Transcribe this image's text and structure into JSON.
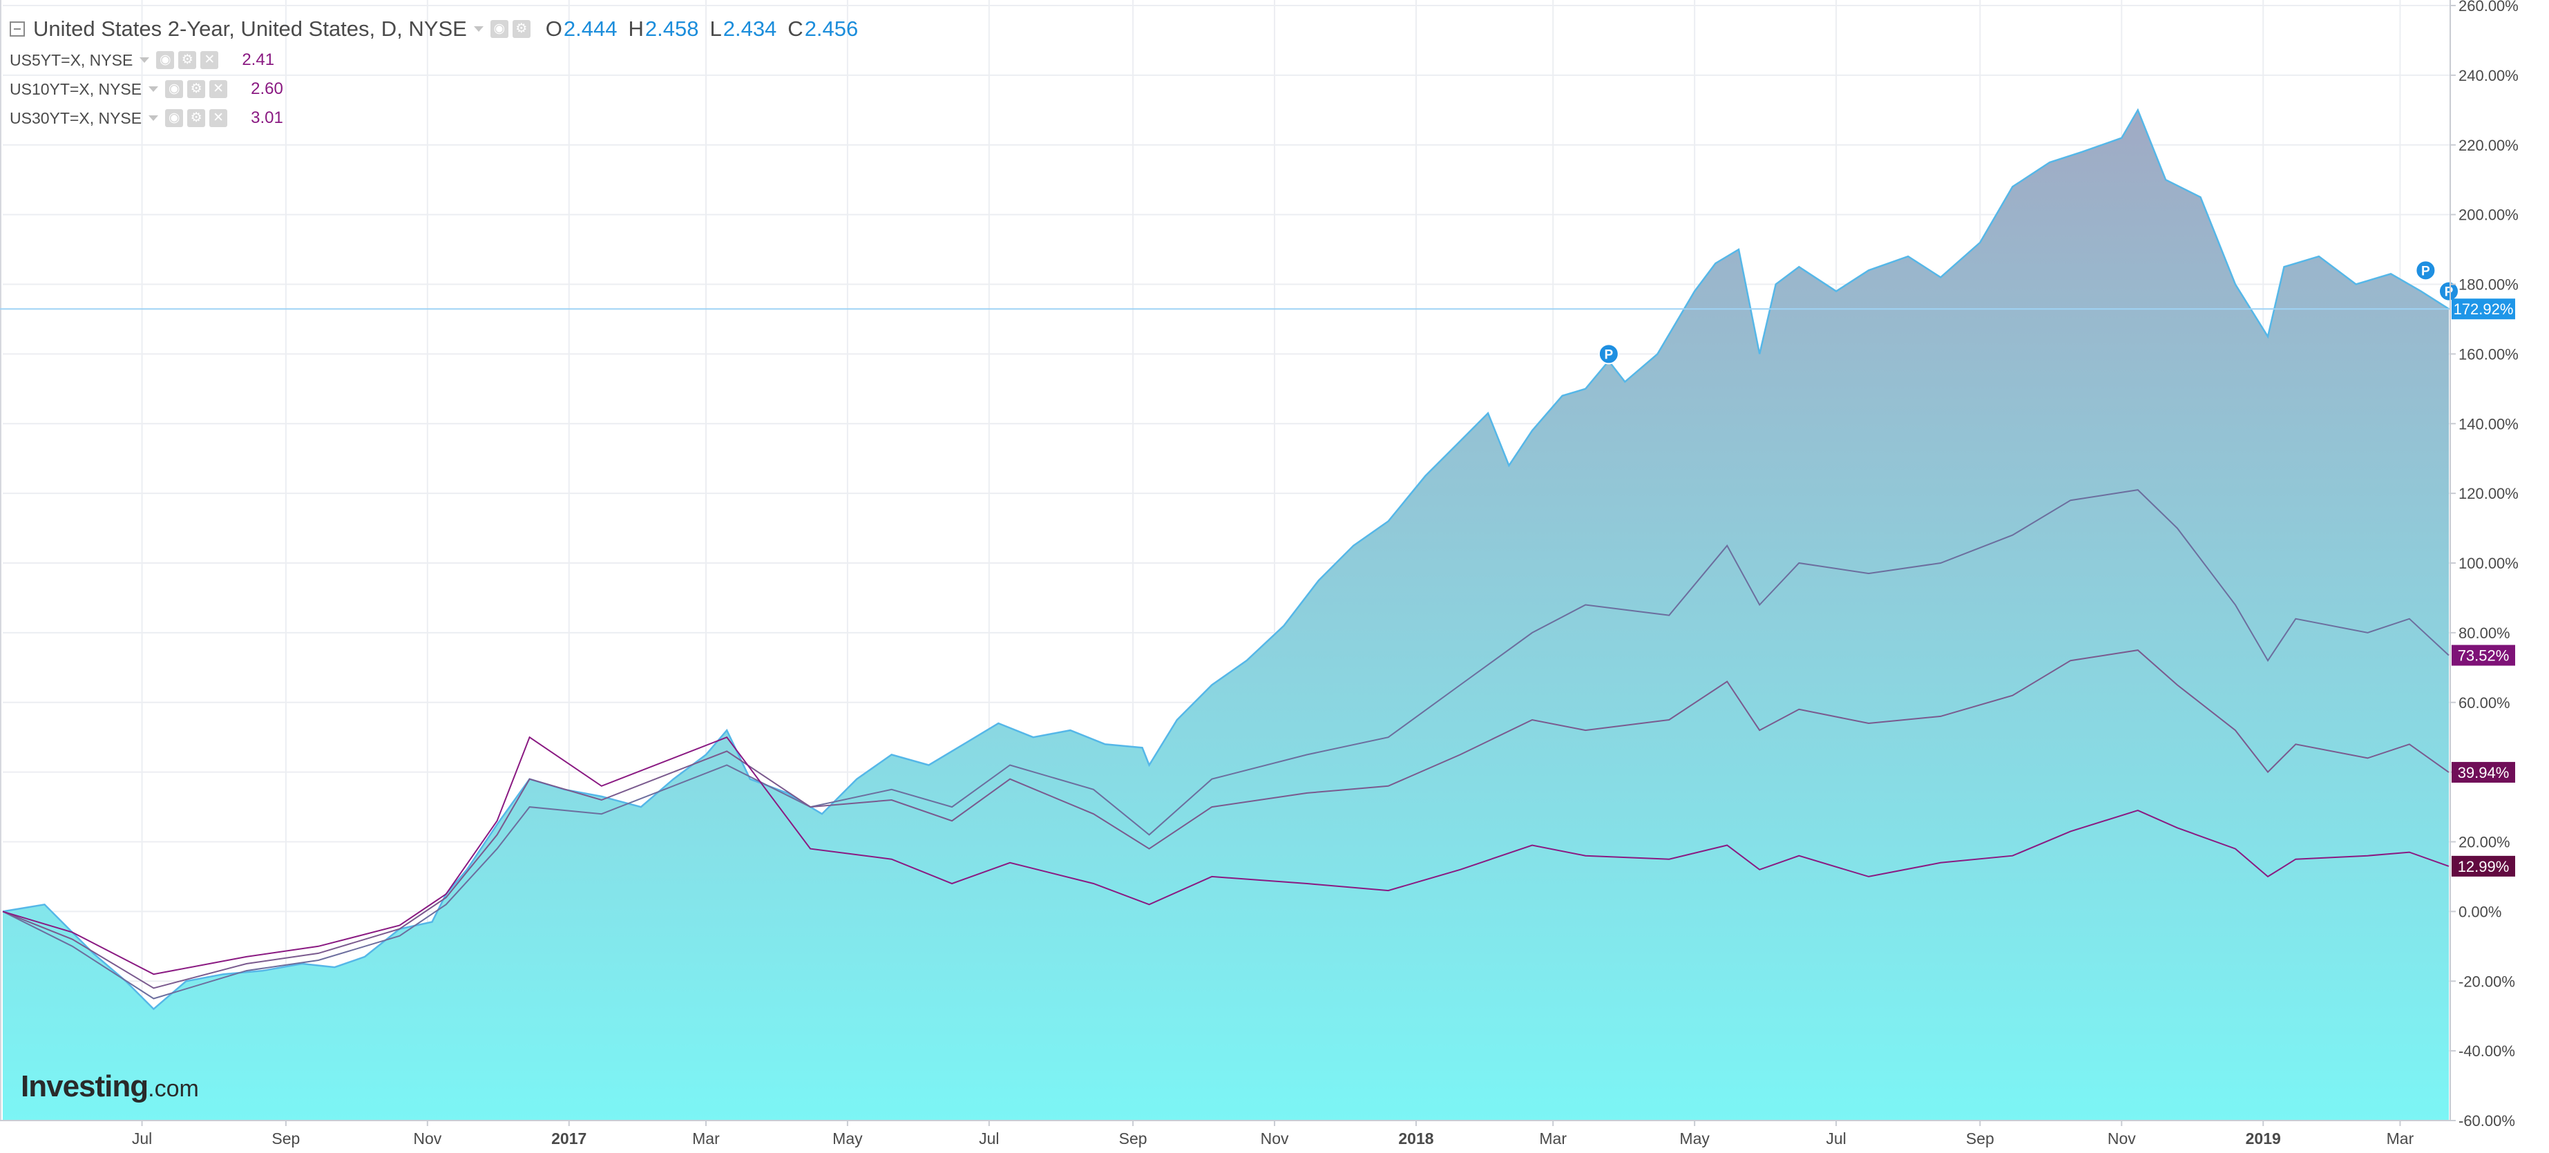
{
  "legend": {
    "main": {
      "title": "United States 2-Year, United States, D, NYSE",
      "o_label": "O",
      "o_value": "2.444",
      "h_label": "H",
      "h_value": "2.458",
      "l_label": "L",
      "l_value": "2.434",
      "c_label": "C",
      "c_value": "2.456"
    },
    "series": [
      {
        "label": "US5YT=X, NYSE",
        "value": "2.41"
      },
      {
        "label": "US10YT=X, NYSE",
        "value": "2.60"
      },
      {
        "label": "US30YT=X, NYSE",
        "value": "3.01"
      }
    ],
    "icons": [
      "eye-icon",
      "gear-icon",
      "close-icon"
    ]
  },
  "watermark": {
    "main": "Investing",
    "suffix": ".com"
  },
  "colors": {
    "area_top": "#a0aac4",
    "area_bottom": "#7cf5f5",
    "area_line": "#55b7e8",
    "main_tag": "#1e96e8",
    "line_5y": "#6c6e9e",
    "line_10y": "#7a5a8e",
    "line_30y": "#8a1a82",
    "tag_5y": "#7e1277",
    "tag_10y": "#700e58",
    "tag_30y": "#620a40",
    "grid": "#eceef2",
    "axis_text": "#4a4a4a"
  },
  "chart_data": {
    "type": "area",
    "x_axis": {
      "type": "date",
      "range": [
        "2016-05-02",
        "2019-03-22"
      ],
      "tick_labels": [
        {
          "label": "Jul",
          "date": "2016-07-01"
        },
        {
          "label": "Sep",
          "date": "2016-09-01"
        },
        {
          "label": "Nov",
          "date": "2016-11-01"
        },
        {
          "label": "2017",
          "date": "2017-01-01",
          "bold": true
        },
        {
          "label": "Mar",
          "date": "2017-03-01"
        },
        {
          "label": "May",
          "date": "2017-05-01"
        },
        {
          "label": "Jul",
          "date": "2017-07-01"
        },
        {
          "label": "Sep",
          "date": "2017-09-01"
        },
        {
          "label": "Nov",
          "date": "2017-11-01"
        },
        {
          "label": "2018",
          "date": "2018-01-01",
          "bold": true
        },
        {
          "label": "Mar",
          "date": "2018-03-01"
        },
        {
          "label": "May",
          "date": "2018-05-01"
        },
        {
          "label": "Jul",
          "date": "2018-07-01"
        },
        {
          "label": "Sep",
          "date": "2018-09-01"
        },
        {
          "label": "Nov",
          "date": "2018-11-01"
        },
        {
          "label": "2019",
          "date": "2019-01-01",
          "bold": true
        },
        {
          "label": "Mar",
          "date": "2019-03-01"
        }
      ]
    },
    "y_axis": {
      "unit": "%",
      "range": [
        -60,
        260
      ],
      "ticks": [
        -60,
        -40,
        -20,
        0,
        20,
        40,
        60,
        80,
        100,
        120,
        140,
        160,
        180,
        200,
        220,
        240,
        260
      ],
      "tick_labels": [
        "-60.00%",
        "-40.00%",
        "-20.00%",
        "0.00%",
        "20.00%",
        "40.00%",
        "60.00%",
        "80.00%",
        "100.00%",
        "120.00%",
        "140.00%",
        "160.00%",
        "180.00%",
        "200.00%",
        "220.00%",
        "240.00%",
        "260.00%"
      ]
    },
    "grid": true,
    "series": [
      {
        "name": "United States 2-Year, United States, D, NYSE",
        "kind": "area",
        "last_label": "172.92%",
        "points": [
          [
            "2016-05-02",
            0
          ],
          [
            "2016-05-20",
            2
          ],
          [
            "2016-06-10",
            -12
          ],
          [
            "2016-06-24",
            -20
          ],
          [
            "2016-07-06",
            -28
          ],
          [
            "2016-07-20",
            -20
          ],
          [
            "2016-08-05",
            -18
          ],
          [
            "2016-08-22",
            -17
          ],
          [
            "2016-09-08",
            -15
          ],
          [
            "2016-09-22",
            -16
          ],
          [
            "2016-10-05",
            -13
          ],
          [
            "2016-10-20",
            -5
          ],
          [
            "2016-11-03",
            -3
          ],
          [
            "2016-11-09",
            5
          ],
          [
            "2016-11-18",
            12
          ],
          [
            "2016-12-01",
            25
          ],
          [
            "2016-12-15",
            38
          ],
          [
            "2016-12-30",
            35
          ],
          [
            "2017-01-15",
            33
          ],
          [
            "2017-02-01",
            30
          ],
          [
            "2017-02-15",
            38
          ],
          [
            "2017-03-01",
            45
          ],
          [
            "2017-03-10",
            52
          ],
          [
            "2017-03-20",
            38
          ],
          [
            "2017-04-05",
            34
          ],
          [
            "2017-04-20",
            28
          ],
          [
            "2017-05-05",
            38
          ],
          [
            "2017-05-20",
            45
          ],
          [
            "2017-06-05",
            42
          ],
          [
            "2017-06-20",
            48
          ],
          [
            "2017-07-05",
            54
          ],
          [
            "2017-07-20",
            50
          ],
          [
            "2017-08-05",
            52
          ],
          [
            "2017-08-20",
            48
          ],
          [
            "2017-09-05",
            47
          ],
          [
            "2017-09-08",
            42
          ],
          [
            "2017-09-20",
            55
          ],
          [
            "2017-10-05",
            65
          ],
          [
            "2017-10-20",
            72
          ],
          [
            "2017-11-05",
            82
          ],
          [
            "2017-11-20",
            95
          ],
          [
            "2017-12-05",
            105
          ],
          [
            "2017-12-20",
            112
          ],
          [
            "2018-01-05",
            125
          ],
          [
            "2018-01-20",
            135
          ],
          [
            "2018-02-01",
            143
          ],
          [
            "2018-02-10",
            128
          ],
          [
            "2018-02-20",
            138
          ],
          [
            "2018-03-05",
            148
          ],
          [
            "2018-03-15",
            150
          ],
          [
            "2018-03-25",
            158
          ],
          [
            "2018-04-01",
            152
          ],
          [
            "2018-04-15",
            160
          ],
          [
            "2018-05-01",
            178
          ],
          [
            "2018-05-10",
            186
          ],
          [
            "2018-05-20",
            190
          ],
          [
            "2018-05-29",
            160
          ],
          [
            "2018-06-05",
            180
          ],
          [
            "2018-06-15",
            185
          ],
          [
            "2018-07-01",
            178
          ],
          [
            "2018-07-15",
            184
          ],
          [
            "2018-08-01",
            188
          ],
          [
            "2018-08-15",
            182
          ],
          [
            "2018-09-01",
            192
          ],
          [
            "2018-09-15",
            208
          ],
          [
            "2018-10-01",
            215
          ],
          [
            "2018-10-15",
            218
          ],
          [
            "2018-11-01",
            222
          ],
          [
            "2018-11-08",
            230
          ],
          [
            "2018-11-20",
            210
          ],
          [
            "2018-12-05",
            205
          ],
          [
            "2018-12-20",
            180
          ],
          [
            "2019-01-03",
            165
          ],
          [
            "2019-01-10",
            185
          ],
          [
            "2019-01-25",
            188
          ],
          [
            "2019-02-10",
            180
          ],
          [
            "2019-02-25",
            183
          ],
          [
            "2019-03-10",
            178
          ],
          [
            "2019-03-22",
            172.92
          ]
        ]
      },
      {
        "name": "US5YT=X, NYSE",
        "kind": "line",
        "last_label": "73.52%",
        "points": [
          [
            "2016-05-02",
            0
          ],
          [
            "2016-06-01",
            -10
          ],
          [
            "2016-07-06",
            -25
          ],
          [
            "2016-08-15",
            -17
          ],
          [
            "2016-09-15",
            -14
          ],
          [
            "2016-10-20",
            -7
          ],
          [
            "2016-11-09",
            2
          ],
          [
            "2016-12-01",
            18
          ],
          [
            "2016-12-15",
            30
          ],
          [
            "2017-01-15",
            28
          ],
          [
            "2017-03-10",
            42
          ],
          [
            "2017-04-15",
            30
          ],
          [
            "2017-05-20",
            35
          ],
          [
            "2017-06-15",
            30
          ],
          [
            "2017-07-10",
            42
          ],
          [
            "2017-08-15",
            35
          ],
          [
            "2017-09-08",
            22
          ],
          [
            "2017-10-05",
            38
          ],
          [
            "2017-11-15",
            45
          ],
          [
            "2017-12-20",
            50
          ],
          [
            "2018-01-20",
            65
          ],
          [
            "2018-02-20",
            80
          ],
          [
            "2018-03-15",
            88
          ],
          [
            "2018-04-20",
            85
          ],
          [
            "2018-05-15",
            105
          ],
          [
            "2018-05-29",
            88
          ],
          [
            "2018-06-15",
            100
          ],
          [
            "2018-07-15",
            97
          ],
          [
            "2018-08-15",
            100
          ],
          [
            "2018-09-15",
            108
          ],
          [
            "2018-10-10",
            118
          ],
          [
            "2018-11-08",
            121
          ],
          [
            "2018-11-25",
            110
          ],
          [
            "2018-12-20",
            88
          ],
          [
            "2019-01-03",
            72
          ],
          [
            "2019-01-15",
            84
          ],
          [
            "2019-02-15",
            80
          ],
          [
            "2019-03-05",
            84
          ],
          [
            "2019-03-22",
            73.52
          ]
        ]
      },
      {
        "name": "US10YT=X, NYSE",
        "kind": "line",
        "last_label": "39.94%",
        "points": [
          [
            "2016-05-02",
            0
          ],
          [
            "2016-06-01",
            -8
          ],
          [
            "2016-07-06",
            -22
          ],
          [
            "2016-08-15",
            -15
          ],
          [
            "2016-09-15",
            -12
          ],
          [
            "2016-10-20",
            -5
          ],
          [
            "2016-11-09",
            4
          ],
          [
            "2016-12-01",
            22
          ],
          [
            "2016-12-15",
            38
          ],
          [
            "2017-01-15",
            32
          ],
          [
            "2017-03-10",
            46
          ],
          [
            "2017-04-15",
            30
          ],
          [
            "2017-05-20",
            32
          ],
          [
            "2017-06-15",
            26
          ],
          [
            "2017-07-10",
            38
          ],
          [
            "2017-08-15",
            28
          ],
          [
            "2017-09-08",
            18
          ],
          [
            "2017-10-05",
            30
          ],
          [
            "2017-11-15",
            34
          ],
          [
            "2017-12-20",
            36
          ],
          [
            "2018-01-20",
            45
          ],
          [
            "2018-02-20",
            55
          ],
          [
            "2018-03-15",
            52
          ],
          [
            "2018-04-20",
            55
          ],
          [
            "2018-05-15",
            66
          ],
          [
            "2018-05-29",
            52
          ],
          [
            "2018-06-15",
            58
          ],
          [
            "2018-07-15",
            54
          ],
          [
            "2018-08-15",
            56
          ],
          [
            "2018-09-15",
            62
          ],
          [
            "2018-10-10",
            72
          ],
          [
            "2018-11-08",
            75
          ],
          [
            "2018-11-25",
            65
          ],
          [
            "2018-12-20",
            52
          ],
          [
            "2019-01-03",
            40
          ],
          [
            "2019-01-15",
            48
          ],
          [
            "2019-02-15",
            44
          ],
          [
            "2019-03-05",
            48
          ],
          [
            "2019-03-22",
            39.94
          ]
        ]
      },
      {
        "name": "US30YT=X, NYSE",
        "kind": "line",
        "last_label": "12.99%",
        "points": [
          [
            "2016-05-02",
            0
          ],
          [
            "2016-06-01",
            -6
          ],
          [
            "2016-07-06",
            -18
          ],
          [
            "2016-08-15",
            -13
          ],
          [
            "2016-09-15",
            -10
          ],
          [
            "2016-10-20",
            -4
          ],
          [
            "2016-11-09",
            5
          ],
          [
            "2016-12-01",
            26
          ],
          [
            "2016-12-15",
            50
          ],
          [
            "2017-01-15",
            36
          ],
          [
            "2017-03-10",
            50
          ],
          [
            "2017-04-15",
            18
          ],
          [
            "2017-05-20",
            15
          ],
          [
            "2017-06-15",
            8
          ],
          [
            "2017-07-10",
            14
          ],
          [
            "2017-08-15",
            8
          ],
          [
            "2017-09-08",
            2
          ],
          [
            "2017-10-05",
            10
          ],
          [
            "2017-11-15",
            8
          ],
          [
            "2017-12-20",
            6
          ],
          [
            "2018-01-20",
            12
          ],
          [
            "2018-02-20",
            19
          ],
          [
            "2018-03-15",
            16
          ],
          [
            "2018-04-20",
            15
          ],
          [
            "2018-05-15",
            19
          ],
          [
            "2018-05-29",
            12
          ],
          [
            "2018-06-15",
            16
          ],
          [
            "2018-07-15",
            10
          ],
          [
            "2018-08-15",
            14
          ],
          [
            "2018-09-15",
            16
          ],
          [
            "2018-10-10",
            23
          ],
          [
            "2018-11-08",
            29
          ],
          [
            "2018-11-25",
            24
          ],
          [
            "2018-12-20",
            18
          ],
          [
            "2019-01-03",
            10
          ],
          [
            "2019-01-15",
            15
          ],
          [
            "2019-02-15",
            16
          ],
          [
            "2019-03-05",
            17
          ],
          [
            "2019-03-22",
            12.99
          ]
        ]
      }
    ],
    "markers": [
      {
        "label": "P",
        "date": "2018-03-25",
        "value": 160
      },
      {
        "label": "P",
        "date": "2019-03-12",
        "value": 184
      },
      {
        "label": "P",
        "date": "2019-03-22",
        "value": 178
      }
    ],
    "crosshair_value": 172.92
  }
}
